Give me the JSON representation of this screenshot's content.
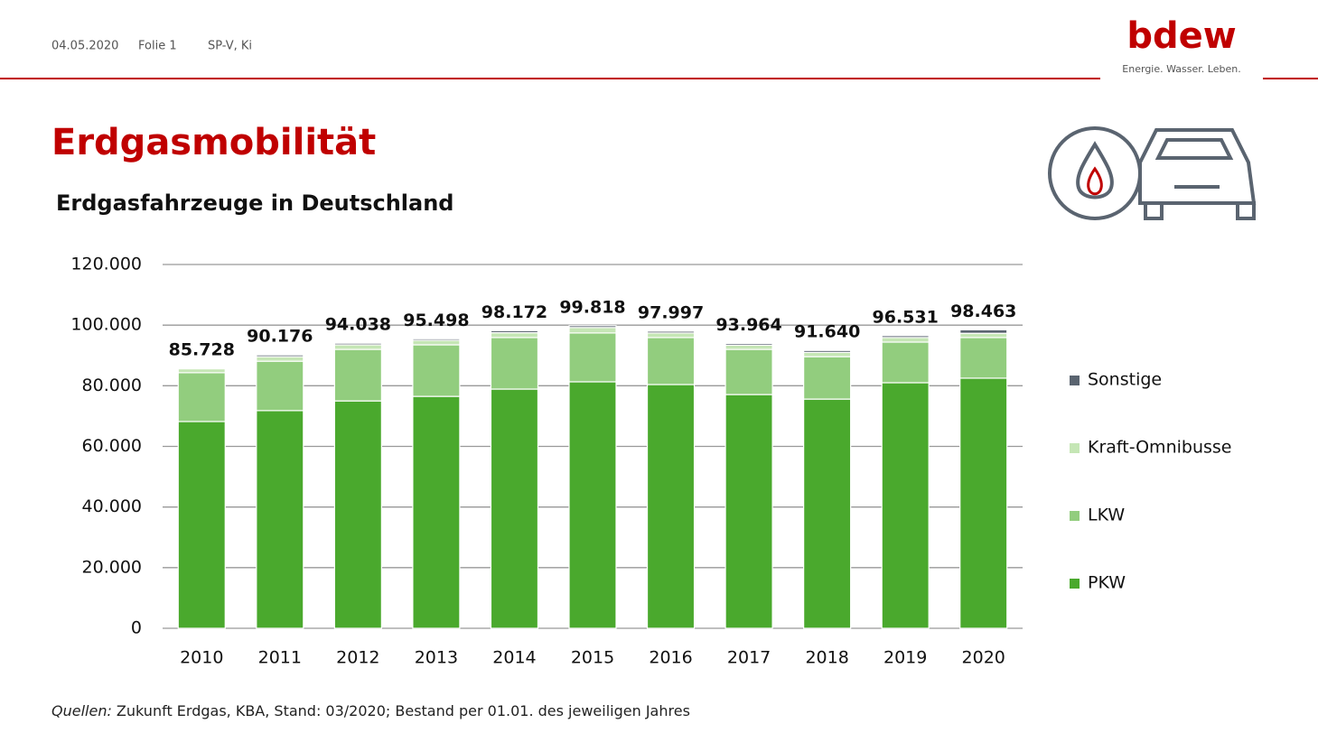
{
  "header": {
    "date": "04.05.2020",
    "slide": "Folie 1",
    "author": "SP-V, Ki",
    "logo": "bdew",
    "slogan": "Energie. Wasser. Leben."
  },
  "chart_data": {
    "type": "stacked_bar",
    "title": "Erdgasmobilität",
    "subtitle": "Erdgasfahrzeuge in Deutschland",
    "categories": [
      "2010",
      "2011",
      "2012",
      "2013",
      "2014",
      "2015",
      "2016",
      "2017",
      "2018",
      "2019",
      "2020"
    ],
    "series": [
      {
        "name": "PKW",
        "color": "#4aa92d",
        "values": [
          68200,
          71800,
          75000,
          76500,
          78900,
          81300,
          80400,
          77100,
          75600,
          81000,
          82500
        ]
      },
      {
        "name": "LKW",
        "color": "#92cd7e",
        "values": [
          16100,
          16300,
          17000,
          17000,
          17000,
          16100,
          15500,
          14900,
          14000,
          13400,
          13400
        ]
      },
      {
        "name": "Kraft-Omnibusse",
        "color": "#c5e6b5",
        "values": [
          1300,
          1500,
          1500,
          1500,
          1600,
          1800,
          1500,
          1400,
          1400,
          1500,
          1400
        ]
      },
      {
        "name": "Sonstige",
        "color": "#5a6470",
        "values": [
          128,
          576,
          538,
          498,
          672,
          618,
          597,
          564,
          640,
          631,
          1163
        ]
      }
    ],
    "totals": {
      "values": [
        85728,
        90176,
        94038,
        95498,
        98172,
        99818,
        97997,
        93964,
        91640,
        96531,
        98463
      ],
      "value_labels": [
        "85.728",
        "90.176",
        "94.038",
        "95.498",
        "98.172",
        "99.818",
        "97.997",
        "93.964",
        "91.640",
        "96.531",
        "98.463"
      ]
    },
    "ylim": [
      0,
      120000
    ],
    "yticks": [
      0,
      {
        "value": 20000,
        "label": "20.000"
      },
      {
        "value": 40000,
        "label": "40.000"
      },
      {
        "value": 60000,
        "label": "60.000"
      },
      {
        "value": 80000,
        "label": "80.000"
      },
      {
        "value": 100000,
        "label": "100.000"
      },
      {
        "value": 120000,
        "label": "120.000"
      }
    ],
    "grid": true,
    "legend": "right",
    "source": {
      "label": "Quellen:",
      "text": " Zukunft Erdgas, KBA, Stand: 03/2020; Bestand per 01.01. des jeweiligen Jahres"
    }
  }
}
